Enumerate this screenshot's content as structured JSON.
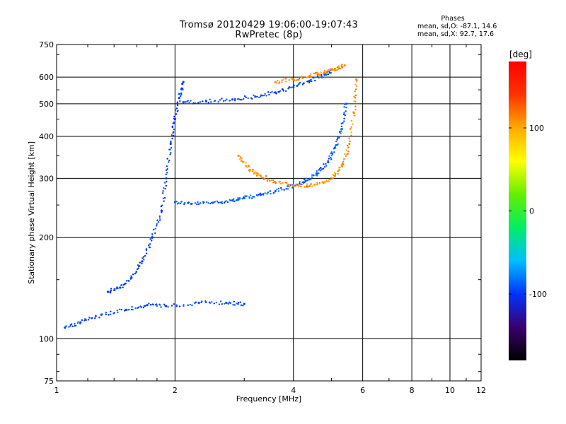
{
  "header": {
    "title_line1": "Tromsø 20120429 19:06:00-19:07:43",
    "title_line2": "RwPretec (8p)"
  },
  "phases": {
    "title": "Phases",
    "line_o": "mean, sd,O: -87.1, 14.6",
    "line_x": "mean, sd,X:  92.7, 17.6"
  },
  "colorbar": {
    "unit": "[deg]",
    "ticks": [
      {
        "value": 100,
        "label": "100"
      },
      {
        "value": 0,
        "label": "0"
      },
      {
        "value": -100,
        "label": "-100"
      }
    ],
    "range": [
      -180,
      180
    ],
    "colors": [
      "#000000",
      "#3a006e",
      "#0033ff",
      "#00bfff",
      "#00ee66",
      "#66ee00",
      "#ffff00",
      "#ffaa00",
      "#ff3300",
      "#ff0000"
    ]
  },
  "chart_data": {
    "type": "scatter",
    "title": "Tromsø 20120429 19:06:00-19:07:43",
    "subtitle": "RwPretec (8p)",
    "xlabel": "Frequency [MHz]",
    "ylabel": "Stationary phase Virtual Height [km]",
    "x_scale": "log",
    "y_scale": "log",
    "xlim": [
      1,
      12
    ],
    "ylim": [
      75,
      750
    ],
    "grid": true,
    "x_ticks": [
      {
        "value": 1,
        "label": "1"
      },
      {
        "value": 2,
        "label": "2"
      },
      {
        "value": 4,
        "label": "4"
      },
      {
        "value": 6,
        "label": "6"
      },
      {
        "value": 8,
        "label": "8"
      },
      {
        "value": 10,
        "label": "10"
      },
      {
        "value": 12,
        "label": "12"
      }
    ],
    "y_ticks": [
      {
        "value": 75,
        "label": "75"
      },
      {
        "value": 100,
        "label": "100"
      },
      {
        "value": 200,
        "label": "200"
      },
      {
        "value": 300,
        "label": "300"
      },
      {
        "value": 400,
        "label": "400"
      },
      {
        "value": 500,
        "label": "500"
      },
      {
        "value": 600,
        "label": "600"
      },
      {
        "value": 750,
        "label": "750"
      }
    ],
    "series": [
      {
        "trace": "o-mode-f-trace",
        "phase_deg": -90,
        "x": [
          2.0,
          2.2,
          2.5,
          2.8,
          3.0,
          3.3,
          3.6,
          4.0,
          4.3,
          4.6,
          4.9,
          5.1,
          5.3,
          5.45
        ],
        "y": [
          255,
          252,
          254,
          258,
          262,
          268,
          275,
          285,
          295,
          310,
          335,
          370,
          420,
          500
        ]
      },
      {
        "trace": "x-mode-f-trace",
        "phase_deg": 110,
        "x": [
          2.9,
          3.1,
          3.3,
          3.6,
          4.0,
          4.4,
          4.8,
          5.1,
          5.35,
          5.55,
          5.7,
          5.78
        ],
        "y": [
          350,
          318,
          305,
          292,
          285,
          285,
          292,
          305,
          330,
          380,
          470,
          590
        ]
      },
      {
        "trace": "o-mode-e-layer-spread",
        "phase_deg": -100,
        "x": [
          1.35,
          1.45,
          1.55,
          1.65,
          1.75,
          1.85,
          1.9,
          1.95,
          2.0,
          2.05,
          2.1
        ],
        "y": [
          138,
          142,
          152,
          170,
          200,
          240,
          300,
          380,
          450,
          520,
          580
        ]
      },
      {
        "trace": "upper-o-branch",
        "phase_deg": -95,
        "x": [
          2.1,
          2.4,
          2.8,
          3.2,
          3.6,
          4.0,
          4.4,
          4.8,
          5.0
        ],
        "y": [
          505,
          508,
          515,
          525,
          540,
          560,
          585,
          610,
          630
        ]
      },
      {
        "trace": "upper-x-branch",
        "phase_deg": 110,
        "x": [
          3.6,
          4.0,
          4.4,
          4.8,
          5.1,
          5.4
        ],
        "y": [
          580,
          590,
          605,
          620,
          635,
          650
        ]
      },
      {
        "trace": "low-echoes",
        "phase_deg": -95,
        "x": [
          1.05,
          1.15,
          1.3,
          1.5,
          1.7,
          1.9,
          2.3,
          2.7,
          3.0
        ],
        "y": [
          108,
          112,
          118,
          122,
          126,
          125,
          128,
          128,
          127
        ]
      }
    ]
  }
}
